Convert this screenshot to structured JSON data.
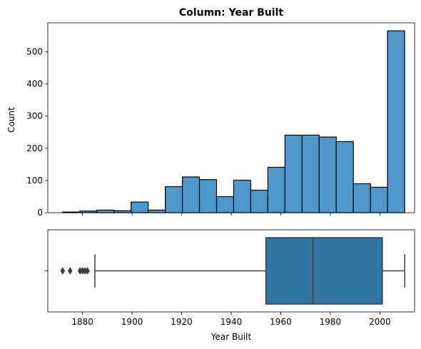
{
  "chart_data": [
    {
      "type": "bar",
      "title": "Column: Year Built",
      "xlabel": "",
      "ylabel": "Count",
      "ylim": [
        0,
        590
      ],
      "yticks": [
        0,
        100,
        200,
        300,
        400,
        500
      ],
      "bar_color": "#4f97c8",
      "edge_color": "#000000",
      "bins": [
        {
          "start": 1872.0,
          "end": 1878.9,
          "count": 2
        },
        {
          "start": 1878.9,
          "end": 1885.8,
          "count": 5
        },
        {
          "start": 1885.8,
          "end": 1892.7,
          "count": 8
        },
        {
          "start": 1892.7,
          "end": 1899.6,
          "count": 6
        },
        {
          "start": 1899.6,
          "end": 1906.5,
          "count": 33
        },
        {
          "start": 1906.5,
          "end": 1913.4,
          "count": 8
        },
        {
          "start": 1913.4,
          "end": 1920.3,
          "count": 81
        },
        {
          "start": 1920.3,
          "end": 1927.2,
          "count": 111
        },
        {
          "start": 1927.2,
          "end": 1934.1,
          "count": 103
        },
        {
          "start": 1934.1,
          "end": 1941.0,
          "count": 50
        },
        {
          "start": 1941.0,
          "end": 1947.9,
          "count": 101
        },
        {
          "start": 1947.9,
          "end": 1954.8,
          "count": 70
        },
        {
          "start": 1954.8,
          "end": 1961.7,
          "count": 141
        },
        {
          "start": 1961.7,
          "end": 1968.6,
          "count": 241
        },
        {
          "start": 1968.6,
          "end": 1975.5,
          "count": 241
        },
        {
          "start": 1975.5,
          "end": 1982.4,
          "count": 235
        },
        {
          "start": 1982.4,
          "end": 1989.3,
          "count": 221
        },
        {
          "start": 1989.3,
          "end": 1996.2,
          "count": 90
        },
        {
          "start": 1996.2,
          "end": 2003.1,
          "count": 79
        },
        {
          "start": 2003.1,
          "end": 2010.0,
          "count": 565
        }
      ]
    },
    {
      "type": "box",
      "xlabel": "Year Built",
      "xlim": [
        1866,
        2014
      ],
      "xticks": [
        1880,
        1900,
        1920,
        1940,
        1960,
        1980,
        2000
      ],
      "box_color": "#3274a1",
      "whisker_low": 1885,
      "q1": 1954,
      "median": 1973,
      "q3": 2001,
      "whisker_high": 2010,
      "outliers": [
        1872,
        1875,
        1879,
        1880,
        1881,
        1882
      ]
    }
  ]
}
